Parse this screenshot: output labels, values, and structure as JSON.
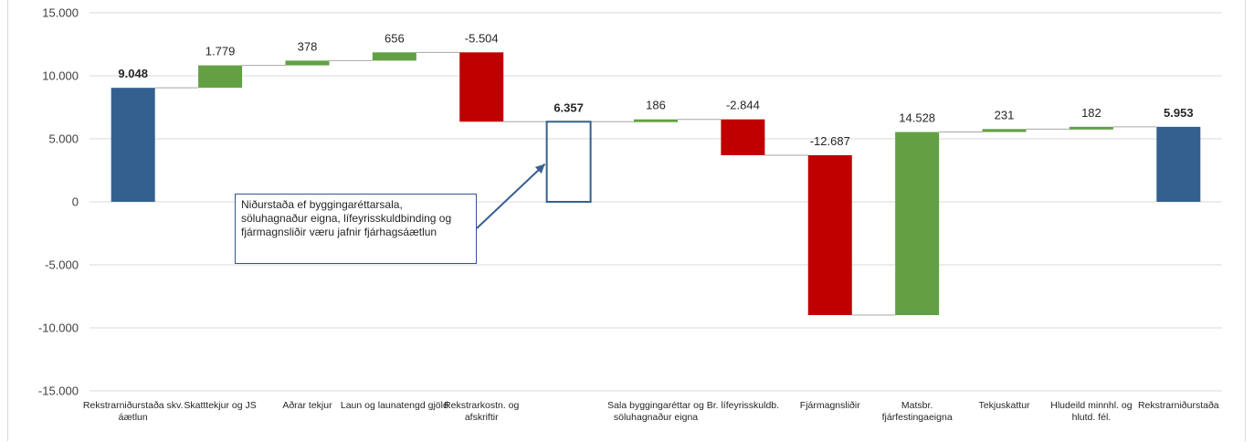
{
  "chart_data": {
    "type": "waterfall",
    "yticks": [
      "15.000",
      "10.000",
      "5.000",
      "0",
      "-5.000",
      "-10.000",
      "-15.000"
    ],
    "ylim": [
      -15000,
      15000
    ],
    "colors": {
      "total": "#34608f",
      "increase": "#63a044",
      "decrease": "#c00000",
      "outline": "#34608f",
      "connector": "#a6a6a6",
      "grid": "#d9d9d9"
    },
    "bars": [
      {
        "label": "Rekstrarniðurstaða skv. áætlun",
        "kind": "total",
        "start": 0,
        "end": 9048,
        "display": "9.048"
      },
      {
        "label": "Skatttekjur og JS",
        "kind": "increase",
        "start": 9048,
        "end": 10827,
        "display": "1.779"
      },
      {
        "label": "Aðrar tekjur",
        "kind": "increase",
        "start": 10827,
        "end": 11205,
        "display": "378"
      },
      {
        "label": "Laun og launatengd gjöld",
        "kind": "increase",
        "start": 11205,
        "end": 11861,
        "display": "656"
      },
      {
        "label": "Rekstrarkostn. og afskriftir",
        "kind": "decrease",
        "start": 11861,
        "end": 6357,
        "display": "-5.504"
      },
      {
        "label": "",
        "kind": "outline",
        "start": 0,
        "end": 6357,
        "display": "6.357"
      },
      {
        "label": "Sala byggingaréttar og söluhagnaður eigna",
        "kind": "increase",
        "start": 6357,
        "end": 6543,
        "display": "186"
      },
      {
        "label": "Br. lífeyrisskuldb.",
        "kind": "decrease",
        "start": 6543,
        "end": 3699,
        "display": "-2.844"
      },
      {
        "label": "Fjármagnsliðir",
        "kind": "decrease",
        "start": 3699,
        "end": -8988,
        "display": "-12.687"
      },
      {
        "label": "Matsbr. fjárfestingaeigna",
        "kind": "increase",
        "start": -8988,
        "end": 5540,
        "display": "14.528"
      },
      {
        "label": "Tekjuskattur",
        "kind": "increase",
        "start": 5540,
        "end": 5771,
        "display": "231"
      },
      {
        "label": "Hludeild minnhl. og hlutd. fél.",
        "kind": "increase",
        "start": 5771,
        "end": 5953,
        "display": "182"
      },
      {
        "label": "Rekstrarniðurstaða",
        "kind": "total",
        "start": 0,
        "end": 5953,
        "display": "5.953"
      }
    ]
  },
  "annotation": {
    "lines": [
      "Niðurstaða ef byggingaréttarsala,",
      "söluhagnaður eigna, lífeyrisskuldbinding og",
      "fjármagnsliðir væru jafnir fjárhagsáætlun"
    ]
  }
}
